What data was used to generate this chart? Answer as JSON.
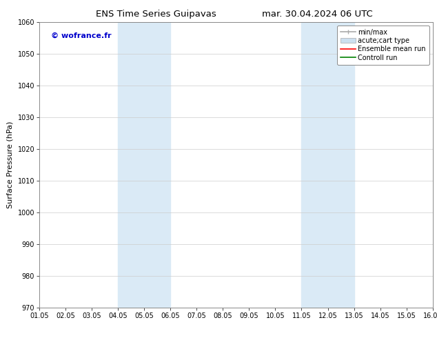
{
  "title_left": "ENS Time Series Guipavas",
  "title_right": "mar. 30.04.2024 06 UTC",
  "ylabel": "Surface Pressure (hPa)",
  "ylim": [
    970,
    1060
  ],
  "yticks": [
    970,
    980,
    990,
    1000,
    1010,
    1020,
    1030,
    1040,
    1050,
    1060
  ],
  "xtick_labels": [
    "01.05",
    "02.05",
    "03.05",
    "04.05",
    "05.05",
    "06.05",
    "07.05",
    "08.05",
    "09.05",
    "10.05",
    "11.05",
    "12.05",
    "13.05",
    "14.05",
    "15.05",
    "16.05"
  ],
  "shaded_regions": [
    {
      "xstart": 3.0,
      "xend": 5.0,
      "color": "#daeaf6"
    },
    {
      "xstart": 10.0,
      "xend": 12.0,
      "color": "#daeaf6"
    }
  ],
  "watermark_text": "© wofrance.fr",
  "watermark_color": "#0000cc",
  "legend_entries": [
    {
      "label": "min/max"
    },
    {
      "label": "acute;cart type"
    },
    {
      "label": "Ensemble mean run"
    },
    {
      "label": "Controll run"
    }
  ],
  "legend_colors": [
    "#aaaaaa",
    "#cce0f0",
    "red",
    "green"
  ],
  "bg_color": "#ffffff",
  "plot_bg_color": "#ffffff",
  "grid_color": "#cccccc",
  "title_fontsize": 9.5,
  "label_fontsize": 8,
  "tick_fontsize": 7,
  "legend_fontsize": 7
}
